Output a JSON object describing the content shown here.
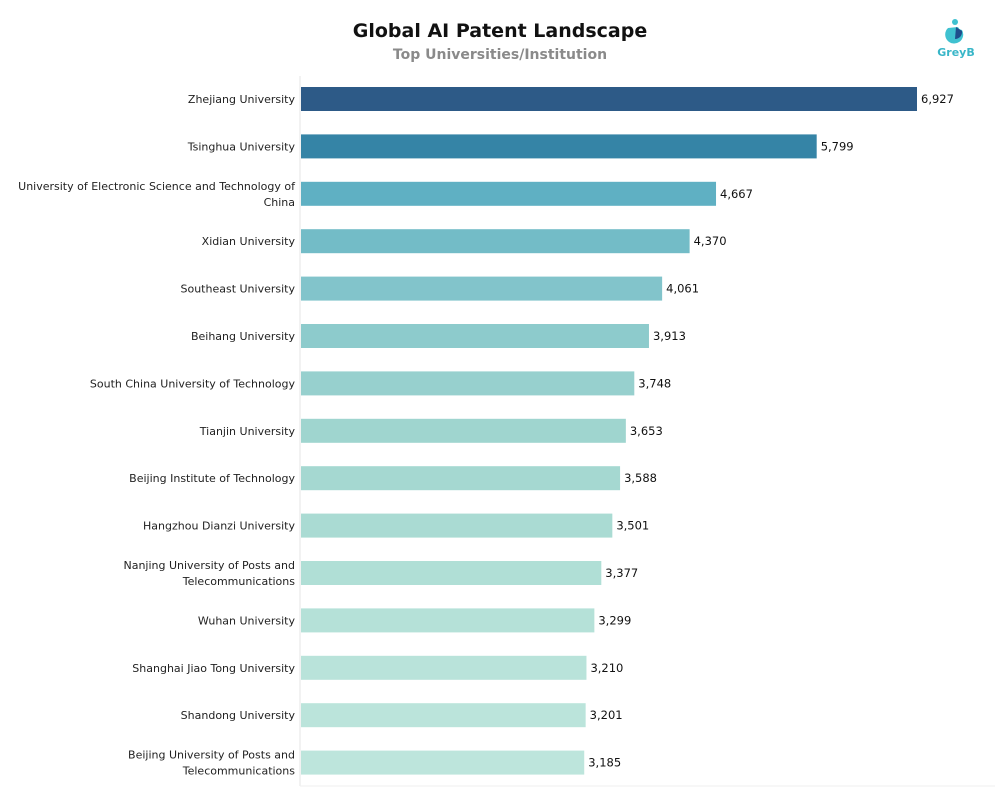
{
  "header": {
    "title": "Global AI Patent Landscape",
    "subtitle": "Top Universities/Institution"
  },
  "logo": {
    "text": "GreyB",
    "icon": "greyb-logo-icon",
    "colors": [
      "#3fc1d0",
      "#1f4e8c"
    ]
  },
  "chart_data": {
    "type": "bar",
    "orientation": "horizontal",
    "title": "Global AI Patent Landscape",
    "subtitle": "Top Universities/Institution",
    "xlabel": "",
    "ylabel": "",
    "xlim": [
      0,
      6927
    ],
    "grid": false,
    "legend": "none",
    "categories": [
      [
        "Zhejiang University"
      ],
      [
        "Tsinghua University"
      ],
      [
        "University of Electronic Science and Technology of",
        "China"
      ],
      [
        "Xidian University"
      ],
      [
        "Southeast University"
      ],
      [
        "Beihang University"
      ],
      [
        "South China University of Technology"
      ],
      [
        "Tianjin University"
      ],
      [
        "Beijing Institute of Technology"
      ],
      [
        "Hangzhou Dianzi University"
      ],
      [
        "Nanjing University of Posts and",
        "Telecommunications"
      ],
      [
        "Wuhan University"
      ],
      [
        "Shanghai Jiao Tong University"
      ],
      [
        "Shandong University"
      ],
      [
        "Beijing University of Posts and",
        "Telecommunications"
      ]
    ],
    "values": [
      6927,
      5799,
      4667,
      4370,
      4061,
      3913,
      3748,
      3653,
      3588,
      3501,
      3377,
      3299,
      3210,
      3201,
      3185
    ],
    "value_labels": [
      "6,927",
      "5,799",
      "4,667",
      "4,370",
      "4,061",
      "3,913",
      "3,748",
      "3,653",
      "3,588",
      "3,501",
      "3,377",
      "3,299",
      "3,210",
      "3,201",
      "3,185"
    ],
    "colors": [
      "#2d5a87",
      "#3584a6",
      "#5fb0c3",
      "#73bcc7",
      "#82c4cb",
      "#8dcbcc",
      "#97d0ce",
      "#9fd5cf",
      "#a5d8d1",
      "#aadbd3",
      "#b0dfd6",
      "#b5e1d8",
      "#b9e3da",
      "#bbe4db",
      "#bde5dc"
    ]
  }
}
